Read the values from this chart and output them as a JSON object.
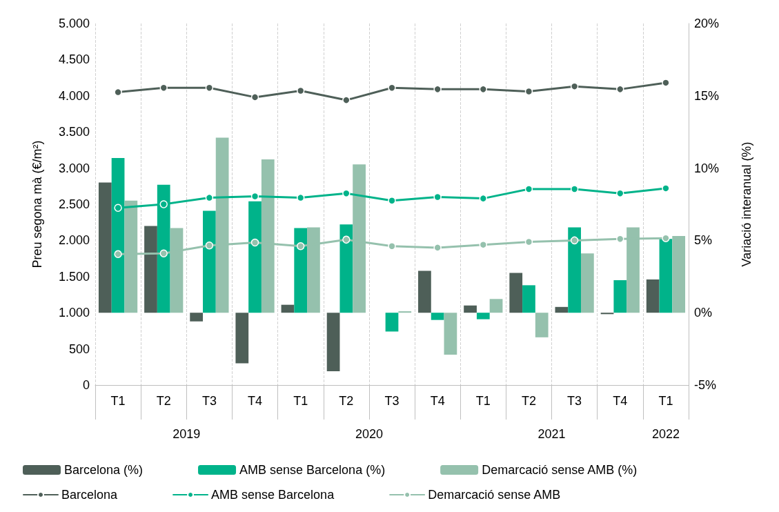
{
  "chart_data": {
    "type": "bar",
    "ylabel": "Preu segona mà (€/m²)",
    "y2label": "Variació interanual (%)",
    "categories": [
      "T1",
      "T2",
      "T3",
      "T4",
      "T1",
      "T2",
      "T3",
      "T4",
      "T1",
      "T2",
      "T3",
      "T4",
      "T1"
    ],
    "annotations": [
      "2019",
      "2020",
      "2021",
      "2022"
    ],
    "series": [
      {
        "name": "Barcelona (%)",
        "axis": "y2",
        "color": "#4e5f58",
        "values": [
          9.0,
          6.0,
          -0.6,
          -3.5,
          0.55,
          -4.05,
          null,
          2.9,
          0.5,
          2.75,
          0.4,
          -0.1,
          2.3
        ]
      },
      {
        "name": "AMB sense Barcelona (%)",
        "axis": "y2",
        "color": "#00b38a",
        "values": [
          10.7,
          8.85,
          7.05,
          7.7,
          5.85,
          6.1,
          -1.3,
          -0.5,
          -0.45,
          1.9,
          5.9,
          2.25,
          5.1
        ]
      },
      {
        "name": "Demarcació sense AMB (%)",
        "axis": "y2",
        "color": "#95c1ad",
        "values": [
          7.75,
          5.85,
          12.1,
          10.6,
          5.9,
          10.25,
          0.1,
          -2.9,
          0.95,
          -1.7,
          4.1,
          5.9,
          5.3
        ]
      },
      {
        "name": "Barcelona",
        "type": "line",
        "color": "#4e5f58",
        "values": [
          4050,
          4110,
          4110,
          3980,
          4070,
          3940,
          4110,
          4090,
          4090,
          4060,
          4130,
          4090,
          4180
        ]
      },
      {
        "name": "AMB sense Barcelona",
        "type": "line",
        "color": "#00b38a",
        "values": [
          2450,
          2500,
          2590,
          2610,
          2590,
          2650,
          2550,
          2600,
          2580,
          2710,
          2710,
          2650,
          2720
        ]
      },
      {
        "name": "Demarcació sense AMB",
        "type": "line",
        "color": "#95c1ad",
        "values": [
          1810,
          1820,
          1930,
          1970,
          1920,
          2010,
          1920,
          1900,
          1940,
          1980,
          2000,
          2020,
          2030
        ]
      }
    ],
    "ylim": [
      0,
      5000
    ],
    "yticks": [
      0,
      500,
      {
        "value": 1000,
        "label": "1.000"
      },
      {
        "value": 1500,
        "label": "1.500"
      },
      {
        "value": 2000,
        "label": "2.000"
      },
      {
        "value": 2500,
        "label": "2.500"
      },
      {
        "value": 3000,
        "label": "3.000"
      },
      {
        "value": 3500,
        "label": "3.500"
      },
      {
        "value": 4000,
        "label": "4.000"
      },
      {
        "value": 4500,
        "label": "4.500"
      },
      {
        "value": 5000,
        "label": "5.000"
      }
    ],
    "y2lim": [
      -5,
      20
    ],
    "y2ticks": [
      {
        "value": -5,
        "label": "-5%"
      },
      {
        "value": 0,
        "label": "0%"
      },
      {
        "value": 5,
        "label": "5%"
      },
      {
        "value": 10,
        "label": "10%"
      },
      {
        "value": 15,
        "label": "15%"
      },
      {
        "value": 20,
        "label": "20%"
      }
    ],
    "grid": "x",
    "legend": "bottom",
    "marker": "circle",
    "line_style": "solid"
  }
}
